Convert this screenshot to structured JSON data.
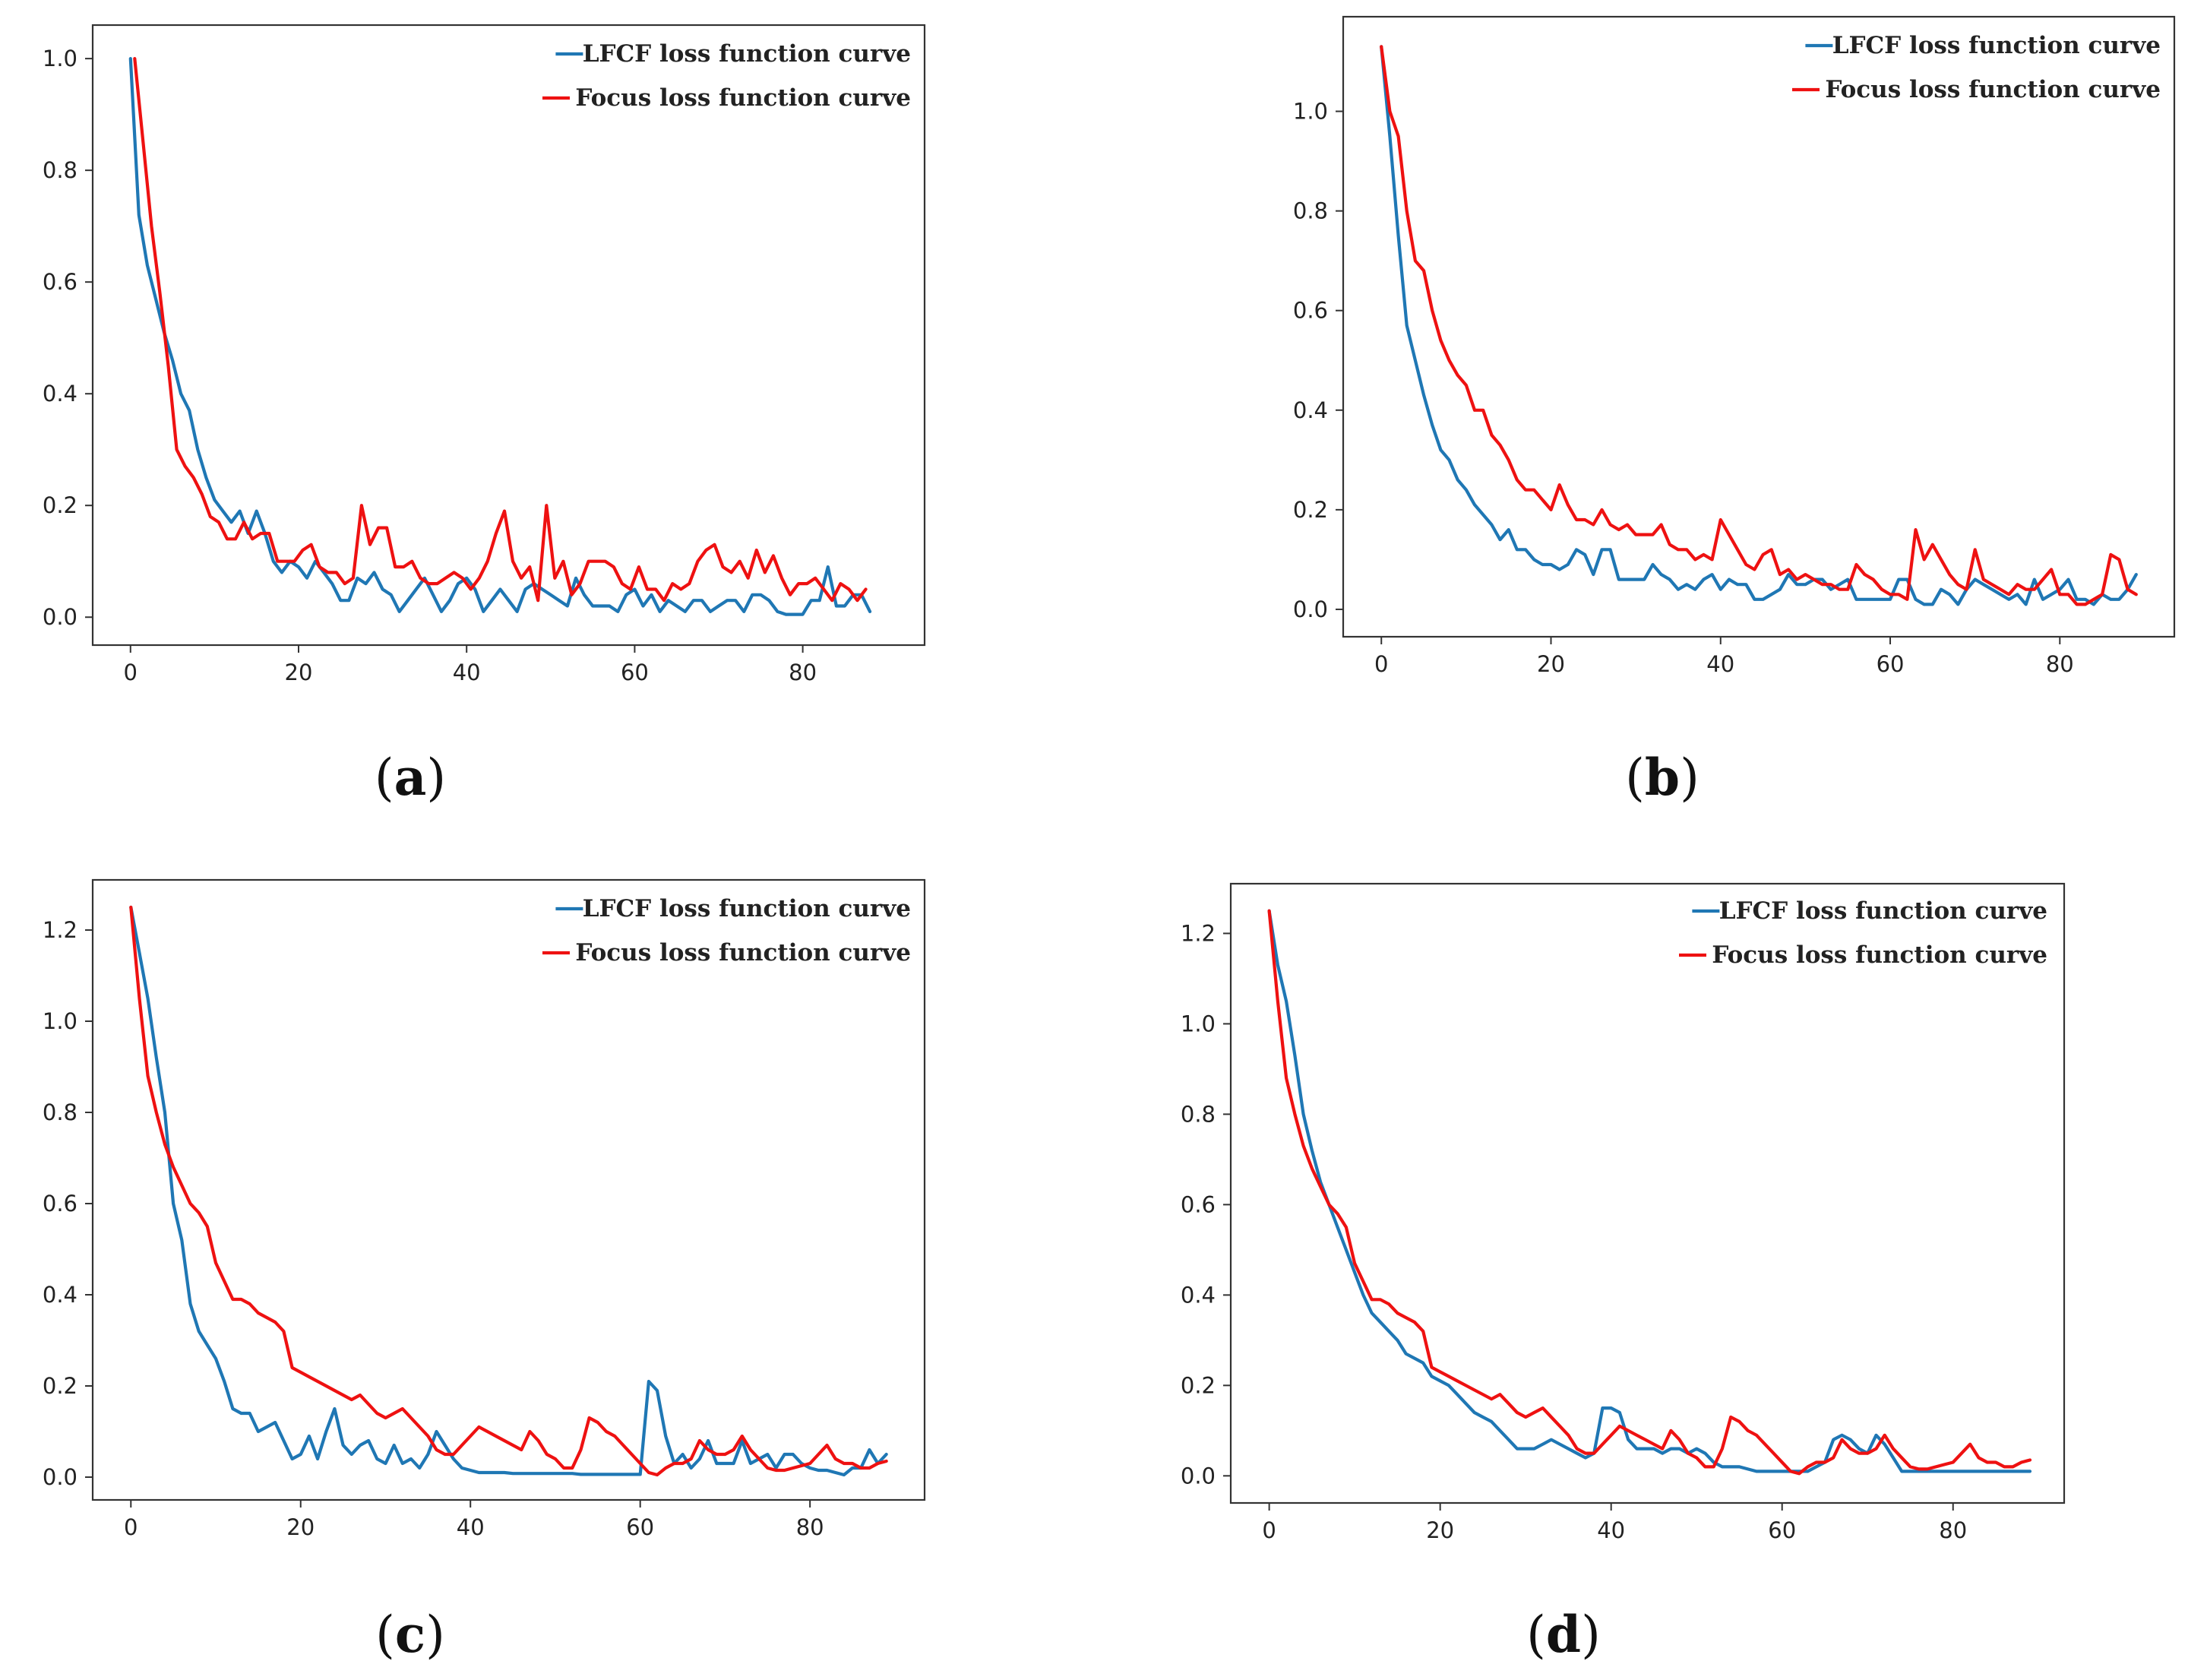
{
  "figure": {
    "colors": {
      "lfcf": "#1f77b4",
      "focus": "#ee1111",
      "axis": "#333333",
      "text": "#222222"
    },
    "subplots": [
      {
        "label_open": "(",
        "label_letter": "a",
        "label_close": ")"
      },
      {
        "label_open": "(",
        "label_letter": "b",
        "label_close": ")"
      },
      {
        "label_open": "(",
        "label_letter": "c",
        "label_close": ")"
      },
      {
        "label_open": "(",
        "label_letter": "d",
        "label_close": ")"
      }
    ]
  },
  "chart_data": [
    {
      "type": "line",
      "panel": "a",
      "legend": [
        "LFCF loss function curve",
        "Focus loss function curve"
      ],
      "legend_position": "top-right",
      "xlim": [
        -4.5,
        94.5
      ],
      "ylim": [
        -0.05,
        1.06
      ],
      "xticks": [
        0,
        20,
        40,
        60,
        80
      ],
      "yticks": [
        0.0,
        0.2,
        0.4,
        0.6,
        0.8,
        1.0
      ],
      "ytick_labels": [
        "0.0",
        "0.2",
        "0.4",
        "0.6",
        "0.8",
        "1.0"
      ],
      "series": [
        {
          "name": "LFCF loss function curve",
          "x_start": 0,
          "values": [
            1.0,
            0.72,
            0.63,
            0.57,
            0.51,
            0.46,
            0.4,
            0.37,
            0.3,
            0.25,
            0.21,
            0.19,
            0.17,
            0.19,
            0.15,
            0.19,
            0.15,
            0.1,
            0.08,
            0.1,
            0.09,
            0.07,
            0.1,
            0.08,
            0.06,
            0.03,
            0.03,
            0.07,
            0.06,
            0.08,
            0.05,
            0.04,
            0.01,
            0.03,
            0.05,
            0.07,
            0.04,
            0.01,
            0.03,
            0.06,
            0.07,
            0.05,
            0.01,
            0.03,
            0.05,
            0.03,
            0.01,
            0.05,
            0.06,
            0.05,
            0.04,
            0.03,
            0.02,
            0.07,
            0.04,
            0.02,
            0.02,
            0.02,
            0.01,
            0.04,
            0.05,
            0.02,
            0.04,
            0.01,
            0.03,
            0.02,
            0.01,
            0.03,
            0.03,
            0.01,
            0.02,
            0.03,
            0.03,
            0.01,
            0.04,
            0.04,
            0.03,
            0.01,
            0.005,
            0.005,
            0.005,
            0.03,
            0.03,
            0.09,
            0.02,
            0.02,
            0.04,
            0.04,
            0.01
          ]
        },
        {
          "name": "Focus loss function curve",
          "x_start": 0.5,
          "values": [
            1.0,
            0.85,
            0.7,
            0.58,
            0.45,
            0.3,
            0.27,
            0.25,
            0.22,
            0.18,
            0.17,
            0.14,
            0.14,
            0.17,
            0.14,
            0.15,
            0.15,
            0.1,
            0.1,
            0.1,
            0.12,
            0.13,
            0.09,
            0.08,
            0.08,
            0.06,
            0.07,
            0.2,
            0.13,
            0.16,
            0.16,
            0.09,
            0.09,
            0.1,
            0.07,
            0.06,
            0.06,
            0.07,
            0.08,
            0.07,
            0.05,
            0.07,
            0.1,
            0.15,
            0.19,
            0.1,
            0.07,
            0.09,
            0.03,
            0.2,
            0.07,
            0.1,
            0.04,
            0.06,
            0.1,
            0.1,
            0.1,
            0.09,
            0.06,
            0.05,
            0.09,
            0.05,
            0.05,
            0.03,
            0.06,
            0.05,
            0.06,
            0.1,
            0.12,
            0.13,
            0.09,
            0.08,
            0.1,
            0.07,
            0.12,
            0.08,
            0.11,
            0.07,
            0.04,
            0.06,
            0.06,
            0.07,
            0.05,
            0.03,
            0.06,
            0.05,
            0.03,
            0.05
          ]
        }
      ]
    },
    {
      "type": "line",
      "panel": "b",
      "legend": [
        "LFCF loss function curve",
        "Focus loss function curve"
      ],
      "legend_position": "top-right",
      "xlim": [
        -4.5,
        93.5
      ],
      "ylim": [
        -0.055,
        1.19
      ],
      "xticks": [
        0,
        20,
        40,
        60,
        80
      ],
      "yticks": [
        0.0,
        0.2,
        0.4,
        0.6,
        0.8,
        1.0
      ],
      "ytick_labels": [
        "0.0",
        "0.2",
        "0.4",
        "0.6",
        "0.8",
        "1.0"
      ],
      "series": [
        {
          "name": "LFCF loss function curve",
          "x_start": 0,
          "values": [
            1.13,
            0.95,
            0.75,
            0.57,
            0.5,
            0.43,
            0.37,
            0.32,
            0.3,
            0.26,
            0.24,
            0.21,
            0.19,
            0.17,
            0.14,
            0.16,
            0.12,
            0.12,
            0.1,
            0.09,
            0.09,
            0.08,
            0.09,
            0.12,
            0.11,
            0.07,
            0.12,
            0.12,
            0.06,
            0.06,
            0.06,
            0.06,
            0.09,
            0.07,
            0.06,
            0.04,
            0.05,
            0.04,
            0.06,
            0.07,
            0.04,
            0.06,
            0.05,
            0.05,
            0.02,
            0.02,
            0.03,
            0.04,
            0.07,
            0.05,
            0.05,
            0.06,
            0.06,
            0.04,
            0.05,
            0.06,
            0.02,
            0.02,
            0.02,
            0.02,
            0.02,
            0.06,
            0.06,
            0.02,
            0.01,
            0.01,
            0.04,
            0.03,
            0.01,
            0.04,
            0.06,
            0.05,
            0.04,
            0.03,
            0.02,
            0.03,
            0.01,
            0.06,
            0.02,
            0.03,
            0.04,
            0.06,
            0.02,
            0.02,
            0.01,
            0.03,
            0.02,
            0.02,
            0.04,
            0.07
          ]
        },
        {
          "name": "Focus loss function curve",
          "x_start": 0,
          "values": [
            1.13,
            1.0,
            0.95,
            0.8,
            0.7,
            0.68,
            0.6,
            0.54,
            0.5,
            0.47,
            0.45,
            0.4,
            0.4,
            0.35,
            0.33,
            0.3,
            0.26,
            0.24,
            0.24,
            0.22,
            0.2,
            0.25,
            0.21,
            0.18,
            0.18,
            0.17,
            0.2,
            0.17,
            0.16,
            0.17,
            0.15,
            0.15,
            0.15,
            0.17,
            0.13,
            0.12,
            0.12,
            0.1,
            0.11,
            0.1,
            0.18,
            0.15,
            0.12,
            0.09,
            0.08,
            0.11,
            0.12,
            0.07,
            0.08,
            0.06,
            0.07,
            0.06,
            0.05,
            0.05,
            0.04,
            0.04,
            0.09,
            0.07,
            0.06,
            0.04,
            0.03,
            0.03,
            0.02,
            0.16,
            0.1,
            0.13,
            0.1,
            0.07,
            0.05,
            0.04,
            0.12,
            0.06,
            0.05,
            0.04,
            0.03,
            0.05,
            0.04,
            0.04,
            0.06,
            0.08,
            0.03,
            0.03,
            0.01,
            0.01,
            0.02,
            0.03,
            0.11,
            0.1,
            0.04,
            0.03
          ]
        }
      ]
    },
    {
      "type": "line",
      "panel": "c",
      "legend": [
        "LFCF loss function curve",
        "Focus loss function curve"
      ],
      "legend_position": "top-right",
      "xlim": [
        -4.5,
        93.5
      ],
      "ylim": [
        -0.05,
        1.31
      ],
      "xticks": [
        0,
        20,
        40,
        60,
        80
      ],
      "yticks": [
        0.0,
        0.2,
        0.4,
        0.6,
        0.8,
        1.0,
        1.2
      ],
      "ytick_labels": [
        "0.0",
        "0.2",
        "0.4",
        "0.6",
        "0.8",
        "1.0",
        "1.2"
      ],
      "series": [
        {
          "name": "LFCF loss function curve",
          "x_start": 0,
          "values": [
            1.25,
            1.15,
            1.05,
            0.92,
            0.8,
            0.6,
            0.52,
            0.38,
            0.32,
            0.29,
            0.26,
            0.21,
            0.15,
            0.14,
            0.14,
            0.1,
            0.11,
            0.12,
            0.08,
            0.04,
            0.05,
            0.09,
            0.04,
            0.1,
            0.15,
            0.07,
            0.05,
            0.07,
            0.08,
            0.04,
            0.03,
            0.07,
            0.03,
            0.04,
            0.02,
            0.05,
            0.1,
            0.07,
            0.04,
            0.02,
            0.015,
            0.01,
            0.01,
            0.01,
            0.01,
            0.008,
            0.008,
            0.008,
            0.008,
            0.008,
            0.008,
            0.008,
            0.008,
            0.006,
            0.006,
            0.006,
            0.006,
            0.006,
            0.006,
            0.006,
            0.006,
            0.21,
            0.19,
            0.09,
            0.03,
            0.05,
            0.02,
            0.04,
            0.08,
            0.03,
            0.03,
            0.03,
            0.08,
            0.03,
            0.04,
            0.05,
            0.02,
            0.05,
            0.05,
            0.03,
            0.02,
            0.015,
            0.015,
            0.01,
            0.005,
            0.02,
            0.02,
            0.06,
            0.03,
            0.05
          ]
        },
        {
          "name": "Focus loss function curve",
          "x_start": 0,
          "values": [
            1.25,
            1.05,
            0.88,
            0.8,
            0.73,
            0.68,
            0.64,
            0.6,
            0.58,
            0.55,
            0.47,
            0.43,
            0.39,
            0.39,
            0.38,
            0.36,
            0.35,
            0.34,
            0.32,
            0.24,
            0.23,
            0.22,
            0.21,
            0.2,
            0.19,
            0.18,
            0.17,
            0.18,
            0.16,
            0.14,
            0.13,
            0.14,
            0.15,
            0.13,
            0.11,
            0.09,
            0.06,
            0.05,
            0.05,
            0.07,
            0.09,
            0.11,
            0.1,
            0.09,
            0.08,
            0.07,
            0.06,
            0.1,
            0.08,
            0.05,
            0.04,
            0.02,
            0.02,
            0.06,
            0.13,
            0.12,
            0.1,
            0.09,
            0.07,
            0.05,
            0.03,
            0.01,
            0.005,
            0.02,
            0.03,
            0.03,
            0.04,
            0.08,
            0.06,
            0.05,
            0.05,
            0.06,
            0.09,
            0.06,
            0.04,
            0.02,
            0.015,
            0.015,
            0.02,
            0.025,
            0.03,
            0.05,
            0.07,
            0.04,
            0.03,
            0.03,
            0.02,
            0.02,
            0.03,
            0.035
          ]
        }
      ]
    },
    {
      "type": "line",
      "panel": "d",
      "legend": [
        "LFCF loss function curve",
        "Focus loss function curve"
      ],
      "legend_position": "top-right",
      "xlim": [
        -4.5,
        93.0
      ],
      "ylim": [
        -0.06,
        1.31
      ],
      "xticks": [
        0,
        20,
        40,
        60,
        80
      ],
      "yticks": [
        0.0,
        0.2,
        0.4,
        0.6,
        0.8,
        1.0,
        1.2
      ],
      "ytick_labels": [
        "0.0",
        "0.2",
        "0.4",
        "0.6",
        "0.8",
        "1.0",
        "1.2"
      ],
      "series": [
        {
          "name": "LFCF loss function curve",
          "x_start": 0,
          "values": [
            1.25,
            1.13,
            1.05,
            0.93,
            0.8,
            0.72,
            0.65,
            0.6,
            0.55,
            0.5,
            0.45,
            0.4,
            0.36,
            0.34,
            0.32,
            0.3,
            0.27,
            0.26,
            0.25,
            0.22,
            0.21,
            0.2,
            0.18,
            0.16,
            0.14,
            0.13,
            0.12,
            0.1,
            0.08,
            0.06,
            0.06,
            0.06,
            0.07,
            0.08,
            0.07,
            0.06,
            0.05,
            0.04,
            0.05,
            0.15,
            0.15,
            0.14,
            0.08,
            0.06,
            0.06,
            0.06,
            0.05,
            0.06,
            0.06,
            0.05,
            0.06,
            0.05,
            0.03,
            0.02,
            0.02,
            0.02,
            0.015,
            0.01,
            0.01,
            0.01,
            0.01,
            0.01,
            0.01,
            0.01,
            0.02,
            0.03,
            0.08,
            0.09,
            0.08,
            0.06,
            0.05,
            0.09,
            0.07,
            0.04,
            0.01,
            0.01,
            0.01,
            0.01,
            0.01,
            0.01,
            0.01,
            0.01,
            0.01,
            0.01,
            0.01,
            0.01,
            0.01,
            0.01,
            0.01,
            0.01
          ]
        },
        {
          "name": "Focus loss function curve",
          "x_start": 0,
          "values": [
            1.25,
            1.05,
            0.88,
            0.8,
            0.73,
            0.68,
            0.64,
            0.6,
            0.58,
            0.55,
            0.47,
            0.43,
            0.39,
            0.39,
            0.38,
            0.36,
            0.35,
            0.34,
            0.32,
            0.24,
            0.23,
            0.22,
            0.21,
            0.2,
            0.19,
            0.18,
            0.17,
            0.18,
            0.16,
            0.14,
            0.13,
            0.14,
            0.15,
            0.13,
            0.11,
            0.09,
            0.06,
            0.05,
            0.05,
            0.07,
            0.09,
            0.11,
            0.1,
            0.09,
            0.08,
            0.07,
            0.06,
            0.1,
            0.08,
            0.05,
            0.04,
            0.02,
            0.02,
            0.06,
            0.13,
            0.12,
            0.1,
            0.09,
            0.07,
            0.05,
            0.03,
            0.01,
            0.005,
            0.02,
            0.03,
            0.03,
            0.04,
            0.08,
            0.06,
            0.05,
            0.05,
            0.06,
            0.09,
            0.06,
            0.04,
            0.02,
            0.015,
            0.015,
            0.02,
            0.025,
            0.03,
            0.05,
            0.07,
            0.04,
            0.03,
            0.03,
            0.02,
            0.02,
            0.03,
            0.035
          ]
        }
      ]
    }
  ]
}
